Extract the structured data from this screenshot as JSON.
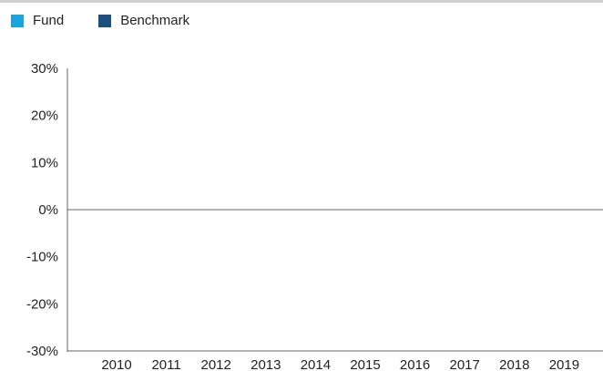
{
  "chart_data": {
    "type": "bar",
    "title": "",
    "xlabel": "",
    "ylabel": "",
    "categories": [
      "2010",
      "2011",
      "2012",
      "2013",
      "2014",
      "2015",
      "2016",
      "2017",
      "2018",
      "2019"
    ],
    "series": [
      {
        "name": "Fund",
        "color": "#1aa3dd",
        "values": [
          null,
          null,
          null,
          null,
          null,
          null,
          null,
          null,
          null,
          null
        ]
      },
      {
        "name": "Benchmark",
        "color": "#1b4f7e",
        "values": [
          null,
          null,
          null,
          null,
          null,
          null,
          null,
          null,
          null,
          null
        ]
      }
    ],
    "ylim": [
      -30,
      30
    ],
    "y_ticks": [
      "30%",
      "20%",
      "10%",
      "0%",
      "-10%",
      "-20%",
      "-30%"
    ],
    "grid": false,
    "legend_position": "top-left"
  }
}
